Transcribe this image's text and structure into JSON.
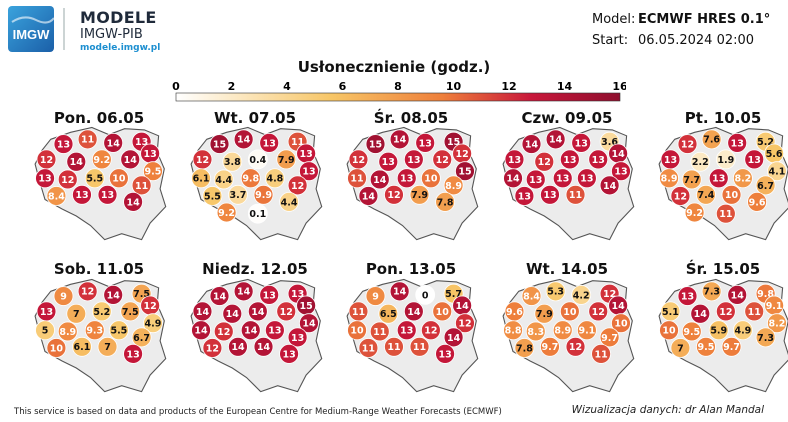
{
  "header": {
    "logo_text": "IMGW",
    "title": "MODELE",
    "subtitle": "IMGW-PIB",
    "url": "modele.imgw.pl",
    "model_label": "Model:",
    "model_value": "ECMWF HRES 0.1°",
    "start_label": "Start:",
    "start_value": "06.05.2024 02:00"
  },
  "legend": {
    "title": "Usłonecznienie (godz.)",
    "ticks": [
      "0",
      "2",
      "4",
      "6",
      "8",
      "10",
      "12",
      "14",
      "16"
    ],
    "min": 0,
    "max": 16
  },
  "days": [
    {
      "title": "Pon. 06.05",
      "values": [
        13,
        11,
        14,
        13,
        13,
        12,
        14,
        9.2,
        14,
        9.5,
        13,
        12,
        5.5,
        10,
        11,
        8.4,
        13,
        13,
        14
      ]
    },
    {
      "title": "Wt. 07.05",
      "values": [
        15,
        14,
        13,
        11,
        13,
        12,
        3.8,
        0.4,
        7.9,
        13,
        6.1,
        4.4,
        9.8,
        4.8,
        12,
        5.5,
        3.7,
        9.9,
        4.4,
        9.2,
        0.1
      ]
    },
    {
      "title": "Śr. 08.05",
      "values": [
        15,
        14,
        13,
        15,
        12,
        12,
        13,
        13,
        12,
        15,
        11,
        14,
        13,
        10,
        8.9,
        14,
        12,
        7.9,
        7.8
      ]
    },
    {
      "title": "Czw. 09.05",
      "values": [
        14,
        14,
        13,
        3.6,
        14,
        13,
        12,
        13,
        13,
        13,
        14,
        13,
        13,
        13,
        14,
        13,
        13,
        11
      ]
    },
    {
      "title": "Pt. 10.05",
      "values": [
        12,
        7.6,
        13,
        5.2,
        5.6,
        13,
        2.2,
        1.9,
        13,
        4.1,
        8.9,
        7.7,
        13,
        8.2,
        6.7,
        12,
        7.4,
        10,
        9.6,
        9.2,
        11
      ]
    },
    {
      "title": "Sob. 11.05",
      "values": [
        9,
        12,
        14,
        7.5,
        12,
        13,
        7,
        5.2,
        7.5,
        4.9,
        5,
        8.9,
        9.3,
        5.5,
        6.7,
        10,
        6.1,
        7,
        13
      ]
    },
    {
      "title": "Niedz. 12.05",
      "values": [
        14,
        14,
        13,
        13,
        15,
        14,
        14,
        14,
        12,
        14,
        14,
        12,
        14,
        13,
        13,
        12,
        14,
        14,
        13
      ]
    },
    {
      "title": "Pon. 13.05",
      "values": [
        9,
        14,
        0,
        5.7,
        14,
        11,
        6.5,
        14,
        10,
        12,
        10,
        11,
        13,
        12,
        14,
        11,
        11,
        11,
        13
      ]
    },
    {
      "title": "Wt. 14.05",
      "values": [
        8.4,
        5.3,
        4.2,
        12,
        14,
        9.6,
        7.9,
        10,
        12,
        10,
        8.8,
        8.3,
        8.9,
        9.1,
        9.7,
        7.8,
        9.7,
        12,
        11
      ]
    },
    {
      "title": "Śr. 15.05",
      "values": [
        13,
        7.3,
        14,
        9.8,
        9.1,
        5.1,
        14,
        12,
        11,
        8.2,
        10,
        9.5,
        5.9,
        4.9,
        7.3,
        7,
        9.5,
        9.7
      ]
    }
  ],
  "footer": {
    "credit": "This service is based on data and products of the European Centre for Medium-Range Weather Forecasts (ECMWF)",
    "author": "Wizualizacja danych: dr Alan Mandal"
  },
  "colors": {
    "low": "#ffffff",
    "mid_low": "#f7c667",
    "mid": "#ee7f3b",
    "high": "#c8173a",
    "max": "#8f0f2e",
    "accent": "#1d8fd0"
  }
}
